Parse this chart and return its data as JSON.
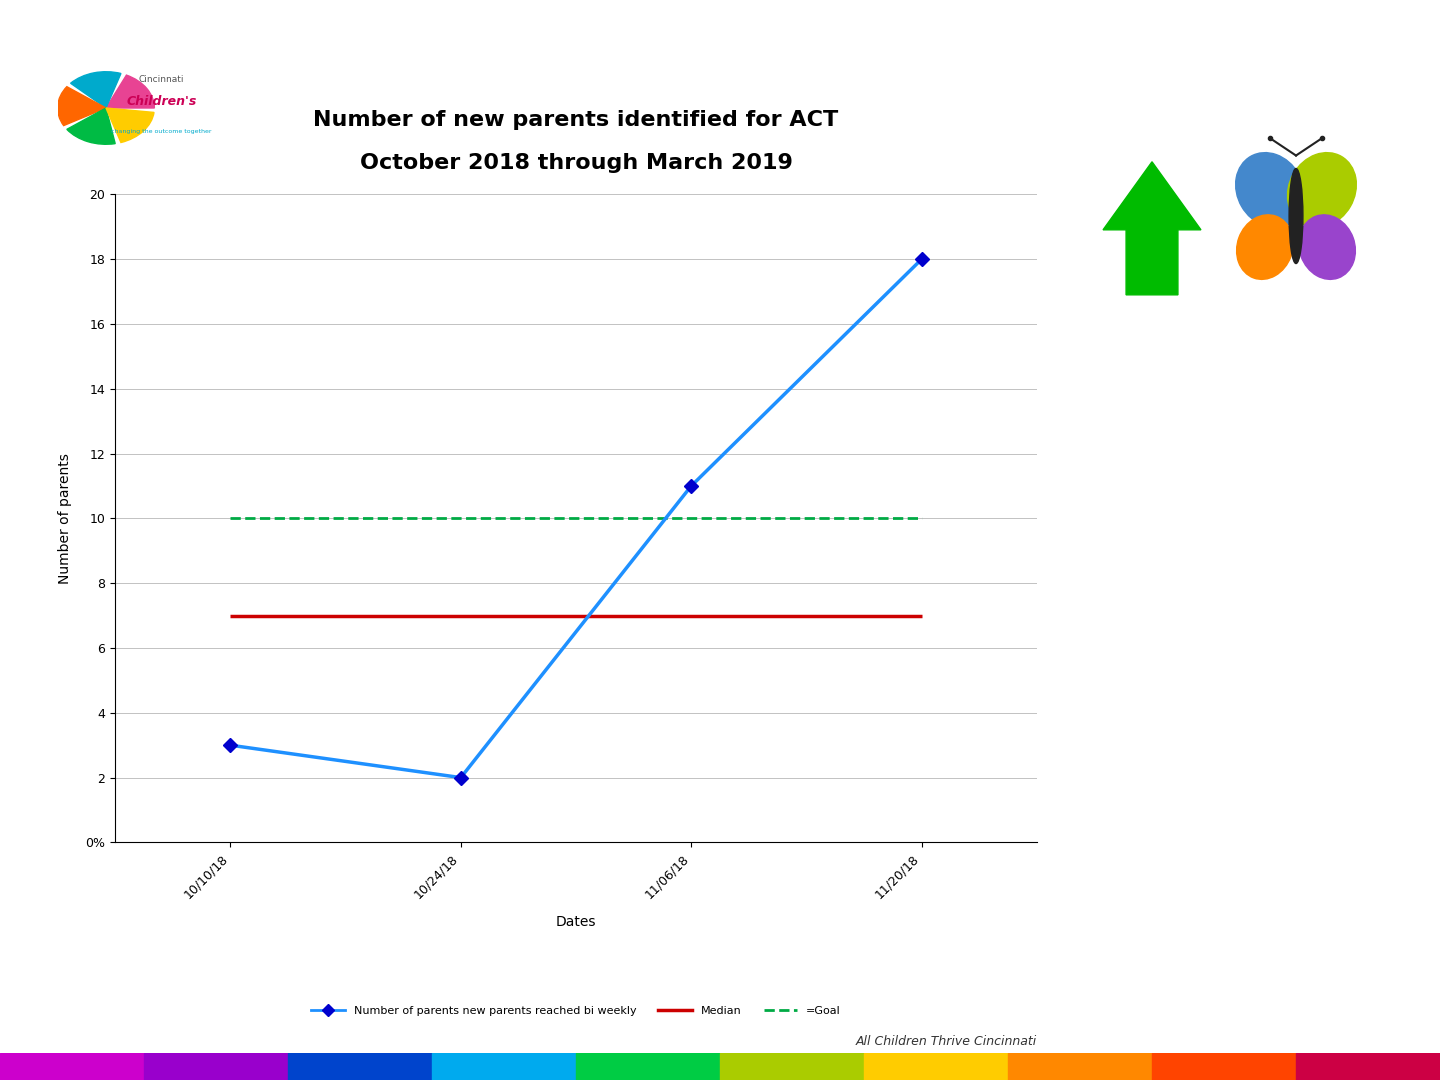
{
  "title_line1": "Number of new parents identified for ACT",
  "title_line2": "October 2018 through March 2019",
  "xlabel": "Dates",
  "ylabel": "Number of parents",
  "x_labels": [
    "10/10/18",
    "10/24/18",
    "11/06/18",
    "11/20/18"
  ],
  "x_values": [
    0,
    1,
    2,
    3
  ],
  "y_data": [
    3,
    2,
    11,
    18
  ],
  "median_value": 7,
  "goal_value": 10,
  "ylim_min": 0,
  "ylim_max": 20,
  "yticks": [
    0,
    2,
    4,
    6,
    8,
    10,
    12,
    14,
    16,
    18,
    20
  ],
  "y_tick_label_zero": "0%",
  "data_line_color": "#1e90ff",
  "data_line_color_dark": "#0000cd",
  "median_color": "#cc0000",
  "goal_color": "#00aa44",
  "background_color": "#ffffff",
  "plot_bg_color": "#ffffff",
  "title_fontsize": 16,
  "axis_label_fontsize": 10,
  "tick_fontsize": 9,
  "legend_fontsize": 8,
  "legend_label_data": "Number of parents new parents reached bi weekly",
  "legend_label_median": "Median",
  "legend_label_goal": "=Goal",
  "footer_text": "All Children Thrive Cincinnati",
  "footer_fontsize": 9
}
